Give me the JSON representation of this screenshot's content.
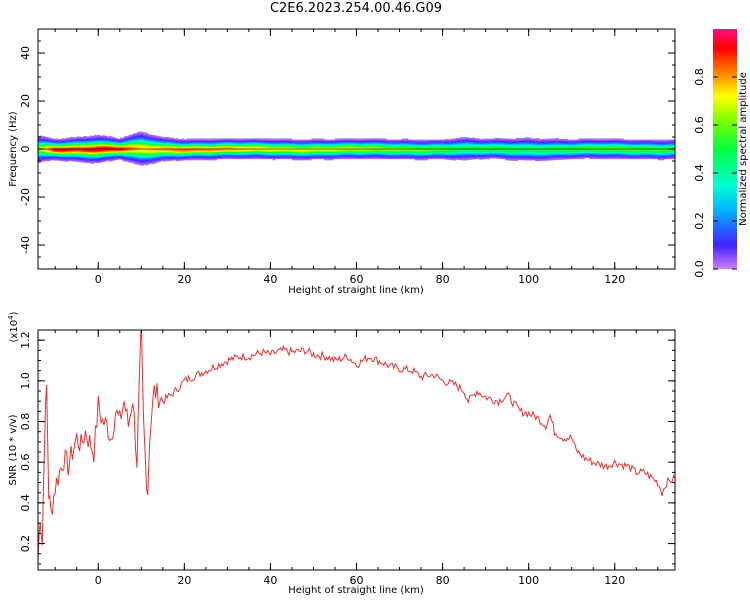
{
  "title": "C2E6.2023.254.00.46.G09",
  "top_panel": {
    "xlabel": "Height of straight line (km)",
    "ylabel": "Frequency (Hz)",
    "colorbar_label": "Normalized spectral amplitude"
  },
  "bottom_panel": {
    "xlabel": "Height of straight line (km)",
    "ylabel": "SNR (10 * v/v)",
    "multiplier_base": "(x10",
    "multiplier_exp": "4",
    "multiplier_close": ")"
  },
  "chart_data": [
    {
      "type": "heatmap",
      "title": "C2E6.2023.254.00.46.G09",
      "xlabel": "Height of straight line (km)",
      "ylabel": "Frequency (Hz)",
      "xlim": [
        -14,
        134
      ],
      "ylim": [
        -50,
        50
      ],
      "x_ticks": [
        0,
        20,
        40,
        60,
        80,
        100,
        120
      ],
      "y_ticks": [
        -40,
        -20,
        0,
        20,
        40
      ],
      "colorbar": {
        "label": "Normalized spectral amplitude",
        "range": [
          0,
          1
        ],
        "ticks": [
          0.0,
          0.2,
          0.4,
          0.6,
          0.8
        ],
        "colormap": "hsv-rainbow (magenta low to red high)"
      },
      "peak_frequency_hz": 0,
      "band_profile": {
        "x": [
          -14,
          -10,
          -5,
          0,
          5,
          10,
          15,
          20,
          30,
          40,
          60,
          80,
          85,
          90,
          100,
          110,
          120,
          134
        ],
        "center_amplitude": [
          0.6,
          0.95,
          0.9,
          0.95,
          0.92,
          0.75,
          0.8,
          0.85,
          0.8,
          0.72,
          0.68,
          0.58,
          0.5,
          0.55,
          0.5,
          0.55,
          0.58,
          0.55
        ],
        "half_width_hz": [
          4,
          3,
          3.5,
          4,
          3,
          5,
          3.5,
          3,
          3,
          3,
          3,
          3,
          3.5,
          3,
          3.5,
          3,
          3,
          3
        ]
      }
    },
    {
      "type": "line",
      "xlabel": "Height of straight line (km)",
      "ylabel": "SNR (10 * v/v)",
      "y_multiplier": "x10^4",
      "xlim": [
        -14,
        134
      ],
      "ylim": [
        0.07,
        1.25
      ],
      "x_ticks": [
        0,
        20,
        40,
        60,
        80,
        100,
        120
      ],
      "y_ticks": [
        0.2,
        0.4,
        0.6,
        0.8,
        1.0,
        1.2
      ],
      "series": [
        {
          "color": "#e8312e",
          "x": [
            -14,
            -13.5,
            -13,
            -12.5,
            -12,
            -11.5,
            -11,
            -10,
            -9,
            -8,
            -7,
            -6,
            -5,
            -4,
            -3,
            -2,
            -1,
            0,
            1,
            2,
            3,
            4,
            5,
            6,
            7,
            8,
            9,
            9.5,
            10,
            10.5,
            11,
            11.5,
            12,
            13,
            15,
            18,
            20,
            22,
            25,
            28,
            30,
            33,
            35,
            38,
            40,
            43,
            45,
            48,
            50,
            53,
            55,
            58,
            60,
            63,
            65,
            68,
            70,
            73,
            75,
            78,
            80,
            83,
            85,
            86,
            88,
            90,
            93,
            95,
            98,
            100,
            102,
            104,
            105,
            106,
            108,
            110,
            111,
            113,
            115,
            118,
            120,
            123,
            125,
            127,
            130,
            131,
            132,
            134
          ],
          "y": [
            0.12,
            0.35,
            0.2,
            0.72,
            0.97,
            0.45,
            0.35,
            0.48,
            0.55,
            0.62,
            0.58,
            0.65,
            0.72,
            0.68,
            0.75,
            0.7,
            0.65,
            0.88,
            0.8,
            0.78,
            0.72,
            0.85,
            0.8,
            0.9,
            0.78,
            0.92,
            0.6,
            0.95,
            1.25,
            0.8,
            0.58,
            0.46,
            0.75,
            0.95,
            0.9,
            0.95,
            1.0,
            1.02,
            1.05,
            1.08,
            1.1,
            1.12,
            1.12,
            1.14,
            1.13,
            1.15,
            1.14,
            1.15,
            1.13,
            1.12,
            1.1,
            1.12,
            1.08,
            1.12,
            1.1,
            1.07,
            1.06,
            1.05,
            1.02,
            1.03,
            1.0,
            0.98,
            0.95,
            0.9,
            0.95,
            0.92,
            0.9,
            0.93,
            0.85,
            0.84,
            0.82,
            0.78,
            0.83,
            0.75,
            0.72,
            0.72,
            0.66,
            0.62,
            0.6,
            0.58,
            0.6,
            0.58,
            0.55,
            0.55,
            0.5,
            0.45,
            0.5,
            0.52
          ]
        }
      ]
    }
  ]
}
